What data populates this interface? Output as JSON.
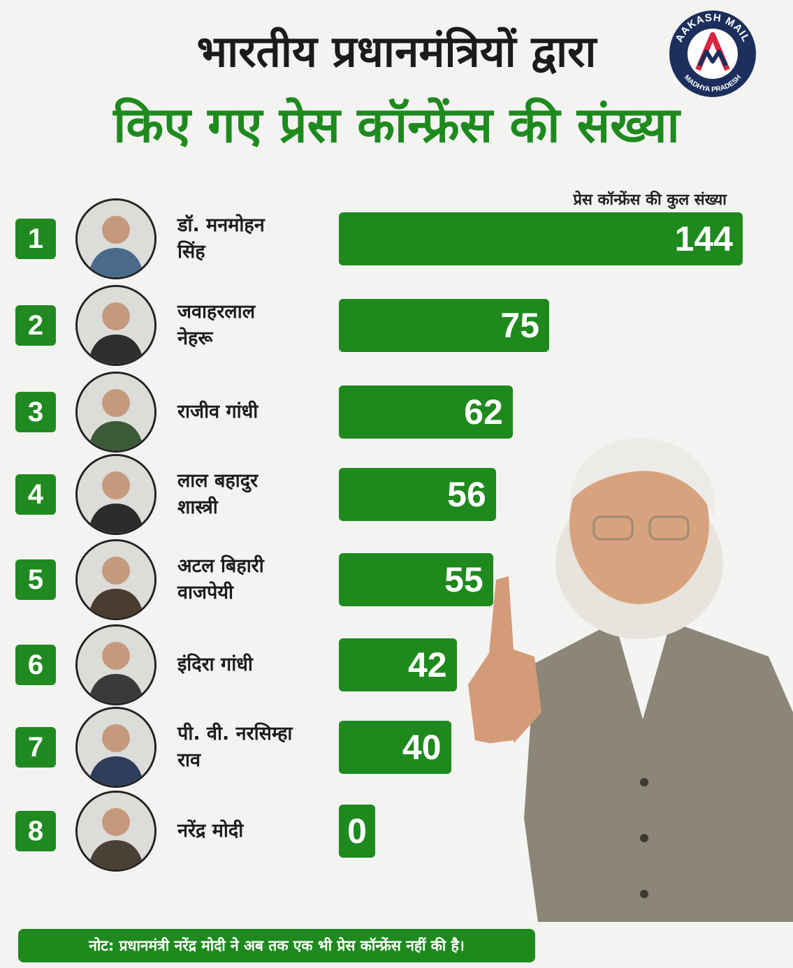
{
  "header": {
    "title_line1": "भारतीय प्रधानमंत्रियों द्वारा",
    "title_line2": "किए गए प्रेस कॉन्फ्रेंस की संख्या"
  },
  "logo": {
    "top_text": "AAKASH MAIL",
    "bottom_text": "MADHYA PRADESH",
    "colors": {
      "ring": "#1c2f5c",
      "accent": "#d7263d"
    }
  },
  "colors": {
    "bar": "#1e8a1e",
    "rank_badge": "#208a20",
    "title_primary": "#1b1b1b",
    "title_secondary": "#1e8a1e",
    "background": "#f3f3f1"
  },
  "chart_data": {
    "type": "bar",
    "orientation": "horizontal",
    "title": "",
    "xlabel": "प्रेस कॉन्फ्रेंस की कुल संख्या",
    "ylabel": "",
    "xlim": [
      0,
      144
    ],
    "grid": false,
    "legend": "none",
    "ranks": [
      "1",
      "2",
      "3",
      "4",
      "5",
      "6",
      "7",
      "8"
    ],
    "categories": [
      [
        "डॉ. मनमोहन",
        "सिंह"
      ],
      [
        "जवाहरलाल",
        "नेहरू"
      ],
      [
        "राजीव गांधी"
      ],
      [
        "लाल बहादुर",
        "शास्त्री"
      ],
      [
        "अटल बिहारी",
        "वाजपेयी"
      ],
      [
        "इंदिरा गांधी"
      ],
      [
        "पी. वी. नरसिम्हा",
        "राव"
      ],
      [
        "नरेंद्र मोदी"
      ]
    ],
    "values": [
      144,
      75,
      62,
      56,
      55,
      42,
      40,
      0
    ]
  },
  "footer": {
    "note": "नोट: प्रधानमंत्री नरेंद्र मोदी ने अब तक एक भी प्रेस कॉन्फ्रेंस नहीं की है।"
  }
}
